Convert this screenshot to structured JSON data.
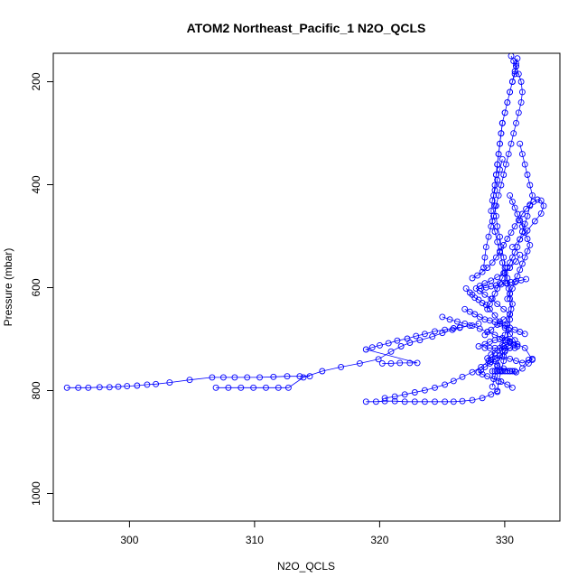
{
  "chart_data": {
    "type": "scatter",
    "title": "ATOM2 Northeast_Pacific_1 N2O_QCLS",
    "xlabel": "N2O_QCLS",
    "ylabel": "Pressure (mbar)",
    "xlim": [
      294.5,
      335
    ],
    "ylim": [
      1050,
      145
    ],
    "y_reversed": true,
    "x_ticks": [
      "300",
      "310",
      "320",
      "330"
    ],
    "y_ticks": [
      "200",
      "400",
      "600",
      "800",
      "1000"
    ],
    "grid": false,
    "legend": "none",
    "colors": {
      "marker": "#0000ff",
      "line": "#0000ff",
      "axis": "#000000"
    },
    "series": [
      {
        "x": [
          295.6,
          296.5,
          297.3,
          298.2,
          299.0,
          299.7,
          300.4,
          301.2,
          302.0,
          302.7,
          303.8,
          305.4,
          307.2,
          308.1,
          309.0,
          310.0,
          311.0,
          312.1,
          313.2,
          314.2,
          315.0
        ],
        "y": [
          792,
          792,
          792,
          791,
          791,
          790,
          789,
          788,
          786,
          785,
          782,
          777,
          772,
          772,
          772,
          772,
          772,
          771,
          770,
          770,
          770
        ]
      },
      {
        "x": [
          307.5,
          308.5,
          309.5,
          310.5,
          311.5,
          312.5,
          313.3,
          314.5,
          316.0,
          317.5,
          319.0,
          320.5,
          321.5,
          322.3,
          323.0,
          323.8,
          324.8,
          325.6,
          326.4,
          327.0,
          327.8,
          328.5
        ],
        "y": [
          792,
          792,
          792,
          792,
          792,
          792,
          792,
          772,
          760,
          752,
          745,
          737,
          722,
          712,
          705,
          700,
          693,
          686,
          680,
          676,
          672,
          668
        ]
      },
      {
        "x": [
          320.8,
          321.5,
          322.2,
          323.0,
          323.6,
          319.5,
          320.0,
          320.6,
          321.3,
          322.0,
          322.8,
          323.5,
          324.2,
          325.0,
          325.8,
          326.5,
          327.0
        ],
        "y": [
          745,
          745,
          744,
          744,
          744,
          718,
          714,
          710,
          706,
          701,
          697,
          692,
          688,
          683,
          680,
          677,
          675
        ]
      },
      {
        "x": [
          319.5,
          320.3,
          321.0,
          321.8,
          322.6,
          323.4,
          324.2,
          325.0,
          325.8,
          326.5,
          327.2,
          328.0,
          328.8,
          329.5,
          330.0
        ],
        "y": [
          819,
          819,
          818,
          818,
          819,
          819,
          819,
          819,
          819,
          819,
          818,
          816,
          812,
          805,
          798
        ]
      },
      {
        "x": [
          321.0,
          321.8,
          322.6,
          323.4,
          324.2,
          325.0,
          325.8,
          326.5,
          327.2,
          328.0,
          328.7,
          329.3,
          329.8
        ],
        "y": [
          812,
          809,
          805,
          801,
          797,
          792,
          786,
          779,
          771,
          762,
          752,
          740,
          725
        ]
      },
      {
        "x": [
          328.5,
          329.0,
          329.4,
          329.8,
          330.2,
          330.6,
          331.0,
          331.3,
          331.0,
          330.6,
          330.2,
          329.8,
          329.4,
          329.0,
          328.7,
          328.5,
          328.8,
          329.2,
          329.7,
          330.3,
          330.8,
          331.2
        ],
        "y": [
          712,
          708,
          703,
          700,
          698,
          700,
          703,
          708,
          715,
          722,
          730,
          737,
          745,
          752,
          758,
          762,
          766,
          770,
          775,
          780,
          786,
          792
        ]
      },
      {
        "x": [
          329.5,
          330.0,
          330.5,
          331.0,
          331.5,
          332.0,
          332.5,
          332.8,
          332.5,
          332.0,
          331.5,
          331.0,
          330.5,
          330.0,
          329.5,
          329.2,
          329.5,
          330.0,
          330.5,
          331.0
        ],
        "y": [
          738,
          735,
          732,
          736,
          740,
          744,
          738,
          736,
          745,
          755,
          762,
          760,
          755,
          748,
          742,
          735,
          728,
          720,
          712,
          705
        ]
      },
      {
        "x": [
          329.0,
          329.5,
          330.0,
          330.5,
          331.0,
          330.5,
          330.0,
          329.5,
          329.0,
          328.6,
          328.3,
          328.6,
          329.0,
          329.5,
          330.0,
          330.5,
          331.0,
          331.5,
          331.8
        ],
        "y": [
          690,
          680,
          670,
          660,
          650,
          640,
          630,
          620,
          612,
          605,
          600,
          595,
          590,
          585,
          578,
          570,
          560,
          548,
          535
        ]
      },
      {
        "x": [
          328.0,
          328.4,
          328.8,
          329.2,
          329.6,
          329.9,
          330.2,
          330.5,
          330.8,
          331.1,
          331.4,
          331.7,
          332.0,
          332.3,
          332.6,
          332.9,
          333.2,
          333.5,
          333.7,
          333.5,
          333.0,
          332.4,
          331.8,
          331.2
        ],
        "y": [
          580,
          575,
          568,
          560,
          550,
          540,
          528,
          516,
          504,
          492,
          480,
          468,
          456,
          446,
          438,
          432,
          428,
          430,
          440,
          455,
          470,
          488,
          505,
          520
        ]
      },
      {
        "x": [
          328.9,
          329.0,
          329.1,
          329.3,
          329.5,
          329.7,
          329.9,
          330.1,
          330.3,
          330.5,
          330.7,
          330.9,
          331.1,
          331.3,
          331.5,
          331.7,
          331.9,
          332.0,
          331.9,
          331.7,
          331.5,
          331.3,
          331.1
        ],
        "y": [
          560,
          540,
          520,
          500,
          480,
          460,
          440,
          420,
          400,
          380,
          360,
          340,
          320,
          300,
          280,
          260,
          240,
          220,
          200,
          185,
          170,
          160,
          150
        ]
      },
      {
        "x": [
          330.0,
          330.1,
          330.3,
          330.5,
          330.6,
          330.8,
          330.9,
          331.0,
          331.1,
          331.0,
          330.9,
          330.8,
          330.6,
          330.5,
          330.3,
          330.2,
          330.0,
          329.9,
          329.8,
          329.7,
          329.8,
          329.9,
          330.0,
          330.1,
          330.2,
          330.3,
          330.4
        ],
        "y": [
          800,
          780,
          760,
          740,
          720,
          700,
          680,
          660,
          640,
          620,
          600,
          580,
          560,
          540,
          520,
          500,
          480,
          460,
          440,
          420,
          400,
          380,
          360,
          340,
          320,
          300,
          280
        ]
      },
      {
        "x": [
          330.4,
          330.6,
          330.8,
          331.0,
          331.2,
          331.4,
          331.5,
          331.6,
          331.5,
          331.4,
          331.2,
          331.0,
          330.8,
          330.6,
          330.4,
          330.3,
          330.2,
          330.1,
          330.0,
          329.9
        ],
        "y": [
          280,
          260,
          240,
          220,
          200,
          185,
          170,
          155,
          165,
          180,
          200,
          220,
          240,
          260,
          280,
          300,
          320,
          340,
          360,
          380
        ]
      },
      {
        "x": [
          329.2,
          329.4,
          329.6,
          329.8,
          330.0,
          330.2,
          330.4,
          330.6,
          330.8,
          331.0,
          331.2,
          331.4,
          331.6,
          331.8,
          332.0,
          332.2,
          332.4,
          332.6,
          332.8,
          332.6,
          332.4,
          332.2,
          332.0,
          331.8
        ],
        "y": [
          640,
          630,
          620,
          610,
          600,
          590,
          580,
          570,
          560,
          550,
          540,
          530,
          520,
          505,
          490,
          475,
          460,
          440,
          420,
          400,
          380,
          360,
          340,
          320
        ]
      },
      {
        "x": [
          329.6,
          329.8,
          330.0,
          330.2,
          330.4,
          330.6,
          330.8,
          331.0,
          331.2,
          331.0,
          330.8,
          330.6,
          330.4,
          330.2,
          330.0,
          329.8,
          329.6,
          329.5,
          329.6,
          329.8,
          330.0,
          330.2,
          330.4
        ],
        "y": [
          790,
          770,
          750,
          730,
          710,
          690,
          670,
          650,
          630,
          610,
          590,
          570,
          550,
          530,
          510,
          490,
          470,
          450,
          430,
          410,
          390,
          370,
          350
        ]
      },
      {
        "x": [
          329.0,
          329.4,
          329.8,
          330.2,
          330.6,
          331.0,
          331.4,
          331.6,
          331.4,
          331.0,
          330.6,
          330.2,
          329.8,
          329.4,
          329.1,
          328.8,
          328.5,
          328.2,
          328.0,
          327.8,
          327.5
        ],
        "y": [
          715,
          715,
          715,
          715,
          715,
          715,
          715,
          712,
          700,
          688,
          676,
          664,
          652,
          640,
          632,
          628,
          622,
          618,
          612,
          608,
          600
        ]
      },
      {
        "x": [
          329.6,
          329.8,
          330.0,
          330.2,
          330.4,
          330.6,
          330.8,
          331.0,
          331.2,
          331.4
        ],
        "y": [
          760,
          760,
          760,
          760,
          760,
          760,
          760,
          760,
          760,
          760
        ]
      },
      {
        "x": [
          330.8,
          331.0,
          331.2,
          331.4,
          331.6,
          331.8,
          332.0,
          332.2,
          332.4,
          332.6,
          332.4,
          332.2,
          332.0,
          331.8,
          331.6,
          331.4,
          331.2,
          331.0
        ],
        "y": [
          620,
          610,
          600,
          588,
          576,
          564,
          552,
          540,
          528,
          516,
          504,
          492,
          480,
          468,
          456,
          444,
          432,
          420
        ]
      },
      {
        "x": [
          327.4,
          327.8,
          328.2,
          328.6,
          329.0,
          329.4,
          329.8,
          330.2,
          330.6,
          331.0,
          331.4,
          331.8,
          332.2
        ],
        "y": [
          640,
          645,
          650,
          655,
          660,
          662,
          665,
          668,
          672,
          676,
          680,
          684,
          688
        ]
      },
      {
        "x": [
          325.6,
          326.2,
          326.8,
          327.4,
          328.0,
          328.6,
          329.2,
          329.8,
          330.4,
          331.0,
          331.6,
          332.2,
          332.8
        ],
        "y": [
          655,
          660,
          664,
          668,
          672,
          678,
          684,
          690,
          696,
          702,
          708,
          715,
          738
        ]
      },
      {
        "x": [
          328.7,
          329.1,
          329.5,
          329.9,
          330.3,
          330.7,
          331.1,
          331.5,
          331.9,
          332.3
        ],
        "y": [
          600,
          598,
          596,
          594,
          592,
          590,
          588,
          586,
          584,
          582
        ]
      }
    ]
  }
}
